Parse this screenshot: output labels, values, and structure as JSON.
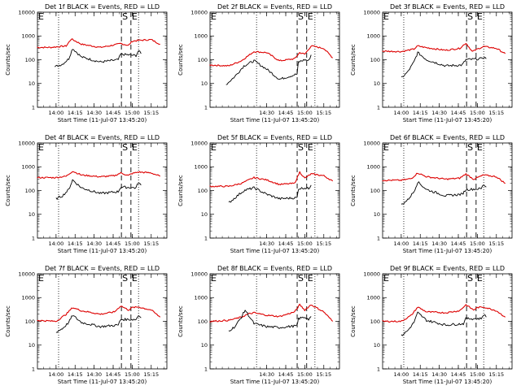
{
  "colors": {
    "events": "#000000",
    "lld": "#dd0000",
    "axis": "#000000"
  },
  "chart_data": [
    {
      "type": "line",
      "title": "Det 1f BLACK = Events, RED = LLD",
      "xlabel": "Start Time (11-Jul-07 13:45:20)",
      "ylabel": "Counts/sec",
      "x_ticks": [
        "14:00",
        "14:15",
        "14:30",
        "14:45",
        "15:00",
        "15:15"
      ],
      "y_ticks": [
        "1",
        "10",
        "100",
        "1000",
        "10000"
      ],
      "ylim": [
        1,
        10000
      ],
      "y_scale": "log",
      "markers": [
        "E",
        "S",
        "E"
      ],
      "series": [
        {
          "x": [
            "13:45",
            "13:56",
            "14:08",
            "14:12",
            "14:20",
            "14:35",
            "14:46",
            "14:51",
            "14:57",
            "15:00",
            "15:05",
            "15:15",
            "15:22"
          ],
          "values": [
            330,
            330,
            380,
            750,
            450,
            330,
            420,
            480,
            400,
            600,
            650,
            700,
            450
          ]
        },
        {
          "x": [
            "13:59",
            "14:05",
            "14:10",
            "14:13",
            "14:20",
            "14:35",
            "14:49",
            "14:51",
            "15:03",
            "15:05",
            "15:07"
          ],
          "values": [
            50,
            65,
            110,
            300,
            130,
            80,
            100,
            170,
            150,
            240,
            180
          ]
        }
      ]
    },
    {
      "type": "line",
      "title": "Det 2f BLACK = Events, RED = LLD",
      "xlabel": "Start Time (11-Jul-07 13:45:20)",
      "ylabel": "Counts/sec",
      "x_ticks": [
        "14:30",
        "14:45",
        "15:00",
        "15:15"
      ],
      "y_ticks": [
        "1",
        "10",
        "100",
        "1000",
        "10000"
      ],
      "ylim": [
        1,
        10000
      ],
      "y_scale": "log",
      "markers": [
        "E",
        "S",
        "E"
      ],
      "series": [
        {
          "x": [
            "13:45",
            "14:00",
            "14:10",
            "14:20",
            "14:30",
            "14:40",
            "14:52",
            "14:56",
            "15:00",
            "15:05",
            "15:15",
            "15:22"
          ],
          "values": [
            60,
            55,
            90,
            220,
            200,
            90,
            110,
            200,
            170,
            380,
            300,
            120
          ]
        },
        {
          "x": [
            "13:58",
            "14:05",
            "14:12",
            "14:20",
            "14:30",
            "14:40",
            "14:54",
            "14:55",
            "15:00",
            "15:03",
            "15:05"
          ],
          "values": [
            9,
            20,
            55,
            90,
            40,
            15,
            25,
            80,
            100,
            90,
            160
          ]
        }
      ]
    },
    {
      "type": "line",
      "title": "Det 3f BLACK = Events, RED = LLD",
      "xlabel": "Start Time (11-Jul-07 13:45:20)",
      "ylabel": "Counts/sec",
      "x_ticks": [
        "14:00",
        "14:15",
        "14:30",
        "14:45",
        "15:00",
        "15:15"
      ],
      "y_ticks": [
        "1",
        "10",
        "100",
        "1000",
        "10000"
      ],
      "ylim": [
        1,
        10000
      ],
      "y_scale": "log",
      "markers": [
        "E",
        "S",
        "E"
      ],
      "series": [
        {
          "x": [
            "13:45",
            "14:00",
            "14:10",
            "14:13",
            "14:20",
            "14:35",
            "14:46",
            "14:51",
            "14:56",
            "15:00",
            "15:05",
            "15:15",
            "15:22"
          ],
          "values": [
            230,
            220,
            280,
            380,
            320,
            250,
            300,
            500,
            220,
            280,
            360,
            300,
            180
          ]
        },
        {
          "x": [
            "14:00",
            "14:05",
            "14:10",
            "14:13",
            "14:20",
            "14:35",
            "14:48",
            "14:51",
            "15:03",
            "15:05",
            "15:07"
          ],
          "values": [
            17,
            30,
            80,
            200,
            100,
            55,
            60,
            100,
            110,
            130,
            110
          ]
        }
      ]
    },
    {
      "type": "line",
      "title": "Det 4f BLACK = Events, RED = LLD",
      "xlabel": "Start Time (11-Jul-07 13:45:20)",
      "ylabel": "Counts/sec",
      "x_ticks": [
        "14:00",
        "14:15",
        "14:30",
        "14:45",
        "15:00",
        "15:15"
      ],
      "y_ticks": [
        "1",
        "10",
        "100",
        "1000",
        "10000"
      ],
      "ylim": [
        1,
        10000
      ],
      "y_scale": "log",
      "markers": [
        "E",
        "S",
        "E"
      ],
      "series": [
        {
          "x": [
            "13:45",
            "14:00",
            "14:08",
            "14:13",
            "14:20",
            "14:35",
            "14:46",
            "14:51",
            "14:57",
            "15:00",
            "15:05",
            "15:15",
            "15:22"
          ],
          "values": [
            350,
            350,
            400,
            650,
            450,
            380,
            420,
            550,
            430,
            520,
            600,
            550,
            400
          ]
        },
        {
          "x": [
            "14:00",
            "14:05",
            "14:10",
            "14:13",
            "14:20",
            "14:35",
            "14:49",
            "14:51",
            "15:03",
            "15:05",
            "15:07"
          ],
          "values": [
            45,
            60,
            110,
            280,
            130,
            75,
            90,
            140,
            130,
            220,
            170
          ]
        }
      ]
    },
    {
      "type": "line",
      "title": "Det 5f BLACK = Events, RED = LLD",
      "xlabel": "Start Time (11-Jul-07 13:45:20)",
      "ylabel": "Counts/sec",
      "x_ticks": [
        "14:30",
        "14:45",
        "15:00",
        "15:15"
      ],
      "y_ticks": [
        "1",
        "10",
        "100",
        "1000",
        "10000"
      ],
      "ylim": [
        1,
        10000
      ],
      "y_scale": "log",
      "markers": [
        "E",
        "S",
        "E"
      ],
      "series": [
        {
          "x": [
            "13:45",
            "14:00",
            "14:10",
            "14:20",
            "14:30",
            "14:40",
            "14:52",
            "14:56",
            "15:00",
            "15:05",
            "15:15",
            "15:22"
          ],
          "values": [
            150,
            150,
            200,
            350,
            280,
            180,
            200,
            600,
            330,
            500,
            420,
            250
          ]
        },
        {
          "x": [
            "14:00",
            "14:05",
            "14:12",
            "14:20",
            "14:30",
            "14:40",
            "14:54",
            "14:55",
            "15:00",
            "15:03",
            "15:05"
          ],
          "values": [
            30,
            50,
            100,
            130,
            70,
            45,
            50,
            120,
            130,
            120,
            170
          ]
        }
      ]
    },
    {
      "type": "line",
      "title": "Det 6f BLACK = Events, RED = LLD",
      "xlabel": "Start Time (11-Jul-07 13:45:20)",
      "ylabel": "Counts/sec",
      "x_ticks": [
        "14:00",
        "14:15",
        "14:30",
        "14:45",
        "15:00",
        "15:15"
      ],
      "y_ticks": [
        "1",
        "10",
        "100",
        "1000",
        "10000"
      ],
      "ylim": [
        1,
        10000
      ],
      "y_scale": "log",
      "markers": [
        "E",
        "S",
        "E"
      ],
      "series": [
        {
          "x": [
            "13:45",
            "14:00",
            "14:08",
            "14:13",
            "14:20",
            "14:35",
            "14:46",
            "14:51",
            "14:57",
            "15:00",
            "15:05",
            "15:15",
            "15:22"
          ],
          "values": [
            270,
            270,
            320,
            550,
            380,
            300,
            330,
            500,
            300,
            350,
            450,
            380,
            200
          ]
        },
        {
          "x": [
            "14:00",
            "14:05",
            "14:10",
            "14:13",
            "14:20",
            "14:35",
            "14:48",
            "14:51",
            "15:03",
            "15:05",
            "15:07"
          ],
          "values": [
            25,
            40,
            90,
            230,
            110,
            60,
            70,
            110,
            120,
            180,
            140
          ]
        }
      ]
    },
    {
      "type": "line",
      "title": "Det 7f BLACK = Events, RED = LLD",
      "xlabel": "Start Time (11-Jul-07 13:45:20)",
      "ylabel": "Counts/sec",
      "x_ticks": [
        "14:00",
        "14:15",
        "14:30",
        "14:45",
        "15:00",
        "15:15"
      ],
      "y_ticks": [
        "1",
        "10",
        "100",
        "1000",
        "10000"
      ],
      "ylim": [
        1,
        10000
      ],
      "y_scale": "log",
      "markers": [
        "E",
        "S",
        "E"
      ],
      "series": [
        {
          "x": [
            "13:45",
            "14:00",
            "14:08",
            "14:13",
            "14:20",
            "14:35",
            "14:46",
            "14:51",
            "14:57",
            "15:00",
            "15:05",
            "15:15",
            "15:22"
          ],
          "values": [
            110,
            100,
            200,
            380,
            280,
            200,
            250,
            450,
            300,
            380,
            400,
            300,
            150
          ]
        },
        {
          "x": [
            "14:00",
            "14:05",
            "14:10",
            "14:13",
            "14:20",
            "14:35",
            "14:49",
            "14:51",
            "15:03",
            "15:05",
            "15:07"
          ],
          "values": [
            35,
            50,
            90,
            180,
            90,
            60,
            70,
            120,
            120,
            180,
            140
          ]
        }
      ]
    },
    {
      "type": "line",
      "title": "Det 8f BLACK = Events, RED = LLD",
      "xlabel": "Start Time (11-Jul-07 13:45:20)",
      "ylabel": "Counts/sec",
      "x_ticks": [
        "14:30",
        "14:45",
        "15:00",
        "15:15"
      ],
      "y_ticks": [
        "1",
        "10",
        "100",
        "1000",
        "10000"
      ],
      "ylim": [
        1,
        10000
      ],
      "y_scale": "log",
      "markers": [
        "E",
        "S",
        "E"
      ],
      "series": [
        {
          "x": [
            "13:45",
            "14:00",
            "14:10",
            "14:15",
            "14:20",
            "14:30",
            "14:40",
            "14:52",
            "14:56",
            "15:00",
            "15:05",
            "15:15",
            "15:22"
          ],
          "values": [
            100,
            110,
            150,
            200,
            230,
            180,
            160,
            250,
            500,
            300,
            500,
            250,
            100
          ]
        },
        {
          "x": [
            "14:00",
            "14:05",
            "14:10",
            "14:13",
            "14:20",
            "14:30",
            "14:40",
            "14:54",
            "14:55",
            "15:00",
            "15:03",
            "15:05"
          ],
          "values": [
            40,
            60,
            150,
            300,
            80,
            60,
            55,
            65,
            130,
            150,
            120,
            160
          ]
        }
      ]
    },
    {
      "type": "line",
      "title": "Det 9f BLACK = Events, RED = LLD",
      "xlabel": "Start Time (11-Jul-07 13:45:20)",
      "ylabel": "Counts/sec",
      "x_ticks": [
        "14:00",
        "14:15",
        "14:30",
        "14:45",
        "15:00",
        "15:15"
      ],
      "y_ticks": [
        "1",
        "10",
        "100",
        "1000",
        "10000"
      ],
      "ylim": [
        1,
        10000
      ],
      "y_scale": "log",
      "markers": [
        "E",
        "S",
        "E"
      ],
      "series": [
        {
          "x": [
            "13:45",
            "14:00",
            "14:08",
            "14:13",
            "14:20",
            "14:35",
            "14:46",
            "14:51",
            "14:57",
            "15:00",
            "15:05",
            "15:15",
            "15:22"
          ],
          "values": [
            100,
            100,
            180,
            400,
            250,
            230,
            280,
            500,
            300,
            380,
            400,
            280,
            150
          ]
        },
        {
          "x": [
            "14:00",
            "14:05",
            "14:10",
            "14:13",
            "14:20",
            "14:35",
            "14:49",
            "14:51",
            "15:03",
            "15:05",
            "15:07"
          ],
          "values": [
            25,
            40,
            90,
            230,
            110,
            70,
            80,
            130,
            130,
            200,
            150
          ]
        }
      ]
    }
  ]
}
